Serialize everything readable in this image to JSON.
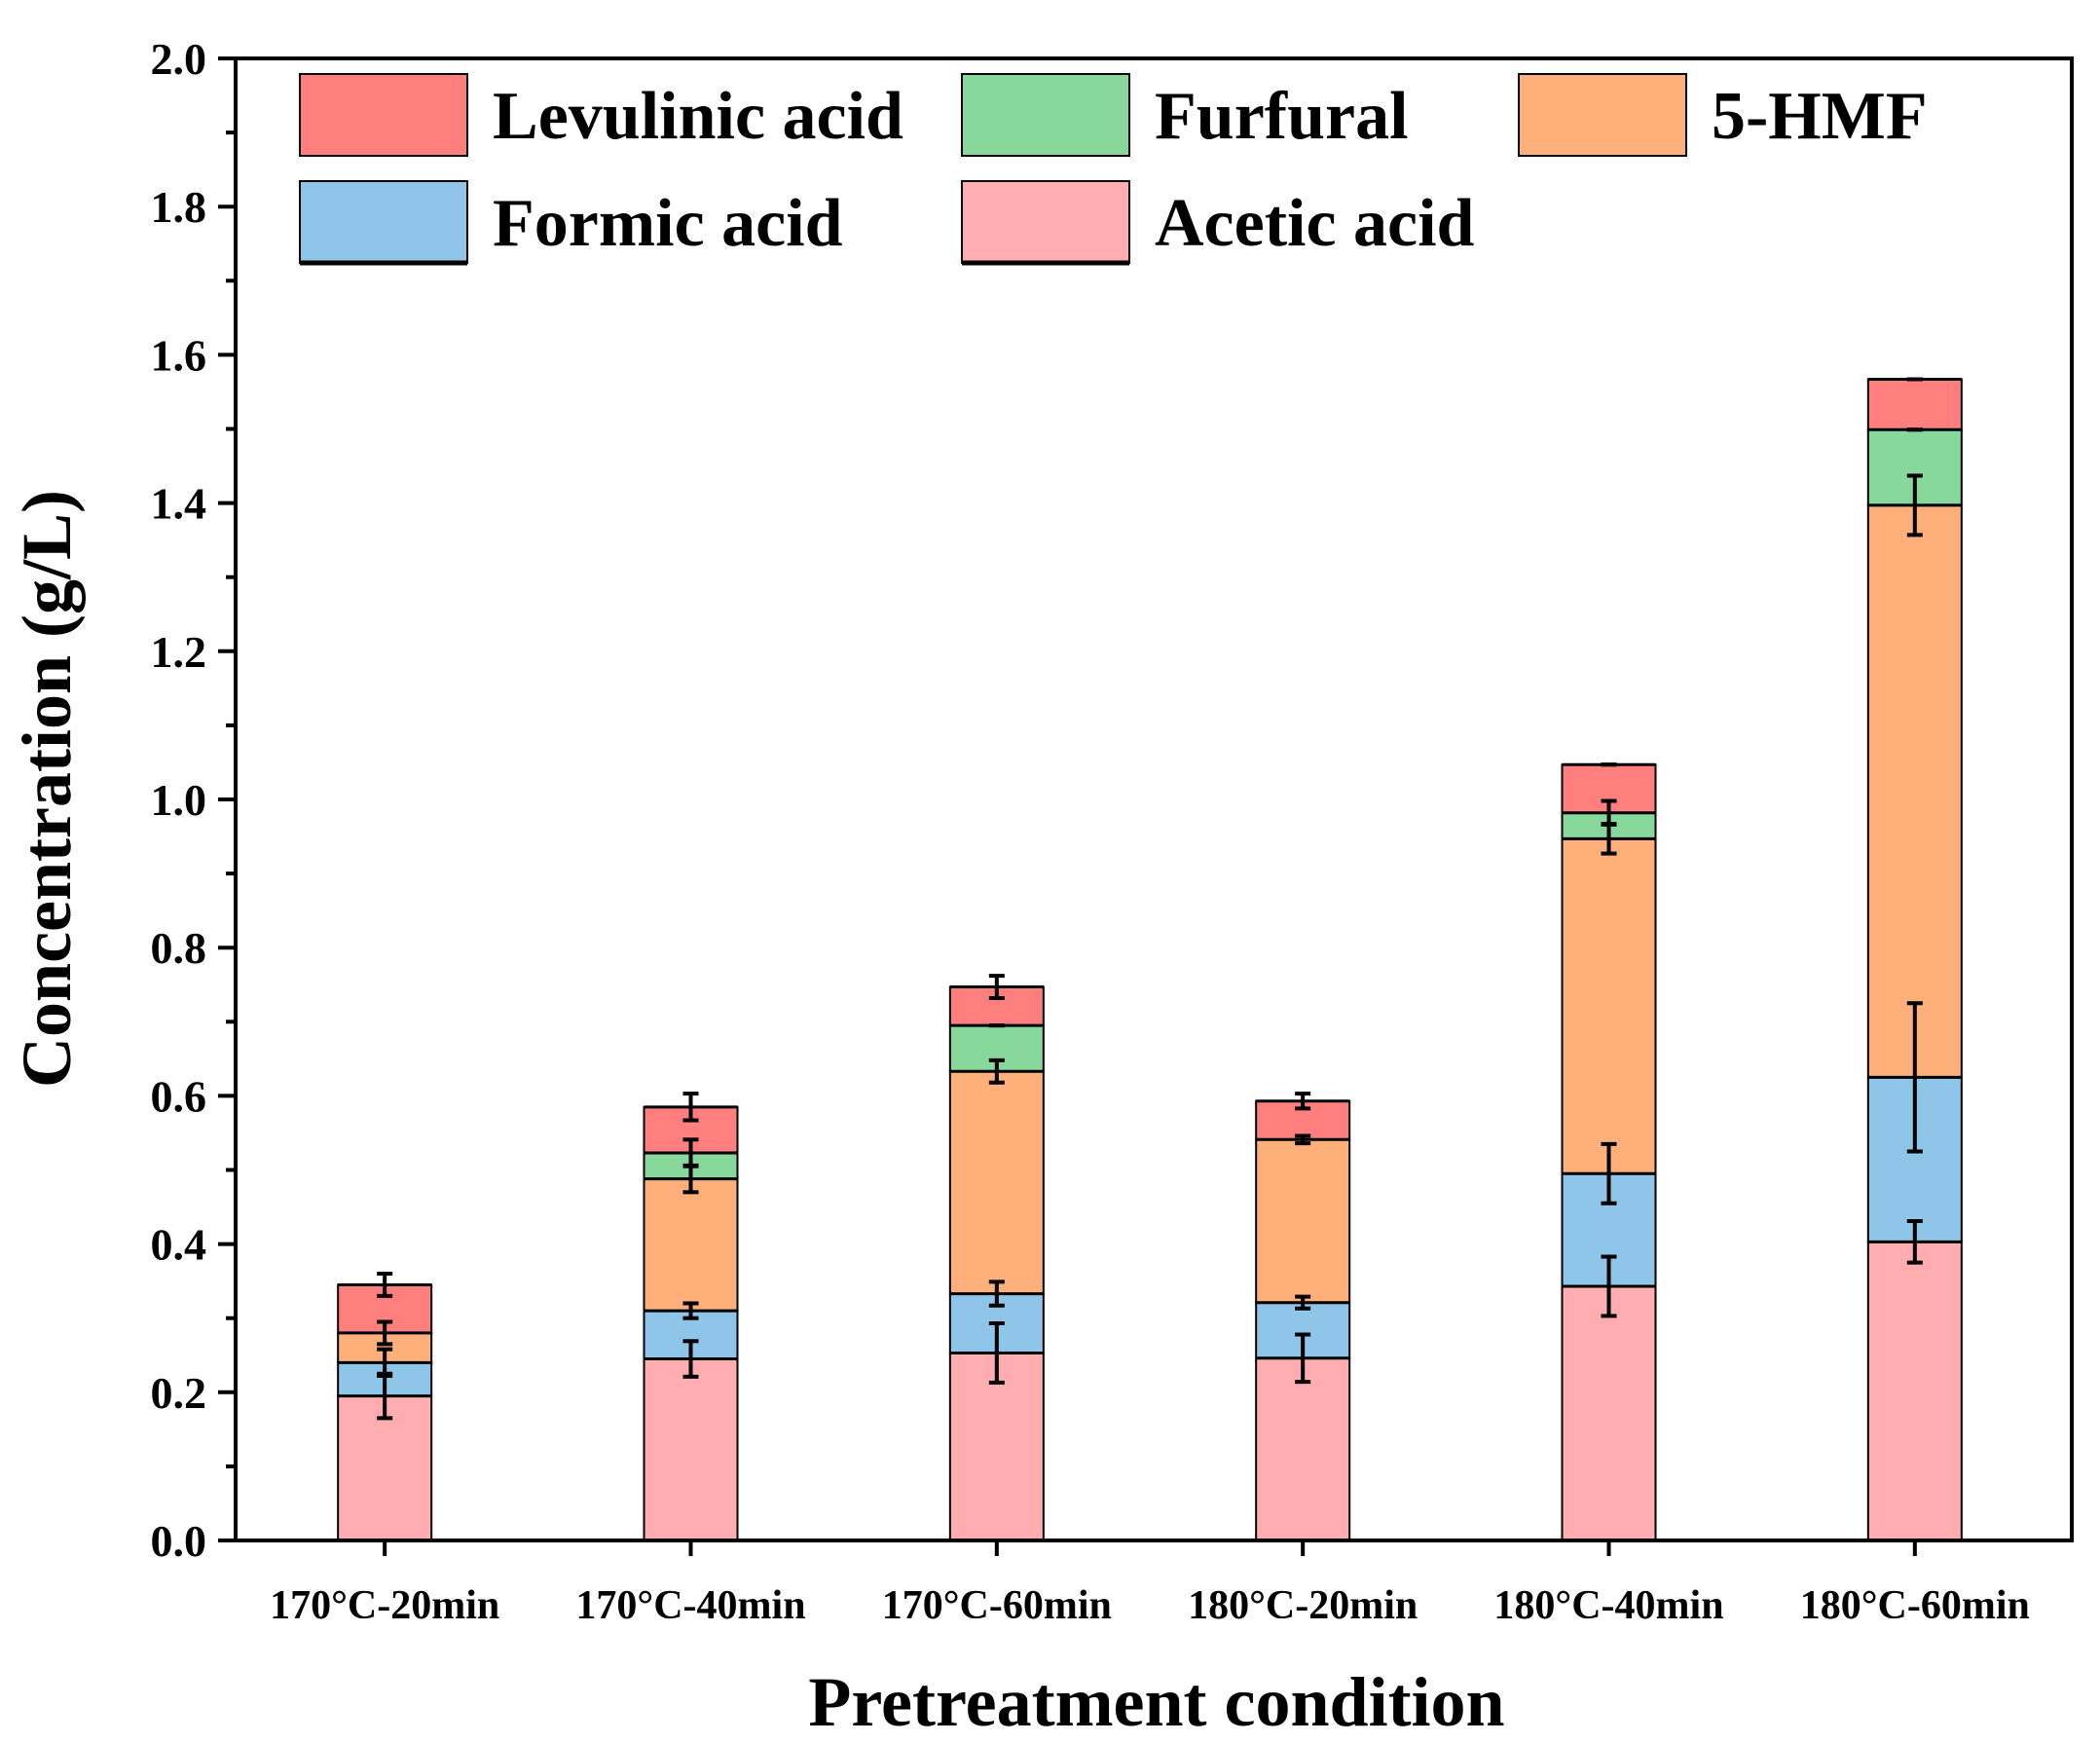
{
  "chart_data": {
    "type": "bar",
    "stacked": true,
    "xlabel": "Pretreatment condition",
    "ylabel": "Concentration (g/L)",
    "ylim": [
      0,
      2.0
    ],
    "yticks": [
      "0.0",
      "0.2",
      "0.4",
      "0.6",
      "0.8",
      "1.0",
      "1.2",
      "1.4",
      "1.6",
      "1.8",
      "2.0"
    ],
    "categories": [
      "170°C-20min",
      "170°C-40min",
      "170°C-60min",
      "180°C-20min",
      "180°C-40min",
      "180°C-60min"
    ],
    "series": [
      {
        "name": "Acetic acid",
        "color": "#FFADB0",
        "values": [
          0.195,
          0.245,
          0.253,
          0.246,
          0.343,
          0.403
        ],
        "errors": [
          0.03,
          0.024,
          0.04,
          0.032,
          0.04,
          0.028
        ]
      },
      {
        "name": "Formic acid",
        "color": "#8EC5E8",
        "values": [
          0.045,
          0.065,
          0.08,
          0.075,
          0.152,
          0.222
        ],
        "errors": [
          0.018,
          0.01,
          0.016,
          0.008,
          0.04,
          0.1
        ]
      },
      {
        "name": "5-HMF",
        "color": "#FFB07A",
        "values": [
          0.04,
          0.178,
          0.3,
          0.22,
          0.452,
          0.772
        ],
        "errors": [
          0.015,
          0.018,
          0.015,
          0.005,
          0.02,
          0.04
        ]
      },
      {
        "name": "Furfural",
        "color": "#88D89B",
        "values": [
          0.0,
          0.035,
          0.062,
          0.0,
          0.035,
          0.102
        ],
        "errors": [
          0.0,
          0.018,
          0.0,
          0.0,
          0.016,
          0.0
        ]
      },
      {
        "name": "Levulinic acid",
        "color": "#FF7F7F",
        "values": [
          0.065,
          0.062,
          0.052,
          0.052,
          0.065,
          0.068
        ],
        "errors": [
          0.015,
          0.018,
          0.015,
          0.01,
          0.0,
          0.0
        ]
      }
    ],
    "legend": {
      "placement": "top",
      "rows": [
        [
          "Levulinic acid",
          "Furfural",
          "5-HMF"
        ],
        [
          "Formic acid",
          "Acetic acid"
        ]
      ]
    }
  }
}
